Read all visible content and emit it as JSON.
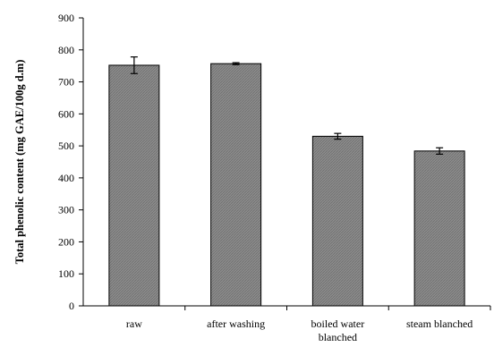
{
  "chart_data": {
    "type": "bar",
    "title": "",
    "xlabel": "",
    "ylabel": "Total phenolic content (mg GAE/100g d.m)",
    "categories": [
      [
        "raw"
      ],
      [
        "after washing"
      ],
      [
        "boiled water",
        "blanched"
      ],
      [
        "steam blanched"
      ]
    ],
    "values": [
      752,
      757,
      530,
      484
    ],
    "errors": [
      26,
      3,
      9,
      10
    ],
    "ylim": [
      0,
      900
    ],
    "yticks": [
      "0",
      "100",
      "200",
      "300",
      "400",
      "500",
      "600",
      "700",
      "800",
      "900"
    ],
    "grid": false,
    "bar_color": "#8c8c8c",
    "bar_edge_color": "#000000"
  }
}
